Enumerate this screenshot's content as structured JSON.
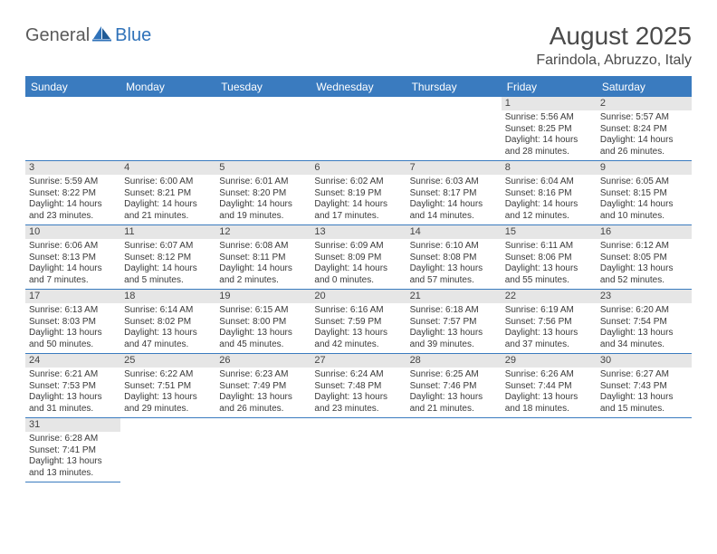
{
  "logo": {
    "part1": "General",
    "part2": "Blue"
  },
  "title": "August 2025",
  "location": "Farindola, Abruzzo, Italy",
  "colors": {
    "header_bg": "#3a7bbf",
    "header_text": "#ffffff",
    "daynum_bg": "#e6e6e6",
    "border": "#3a7bbf",
    "logo_gray": "#5a5a5a",
    "logo_blue": "#2f72b9"
  },
  "day_names": [
    "Sunday",
    "Monday",
    "Tuesday",
    "Wednesday",
    "Thursday",
    "Friday",
    "Saturday"
  ],
  "weeks": [
    [
      {
        "empty": true
      },
      {
        "empty": true
      },
      {
        "empty": true
      },
      {
        "empty": true
      },
      {
        "empty": true
      },
      {
        "num": "1",
        "sunrise": "Sunrise: 5:56 AM",
        "sunset": "Sunset: 8:25 PM",
        "daylight": "Daylight: 14 hours and 28 minutes."
      },
      {
        "num": "2",
        "sunrise": "Sunrise: 5:57 AM",
        "sunset": "Sunset: 8:24 PM",
        "daylight": "Daylight: 14 hours and 26 minutes."
      }
    ],
    [
      {
        "num": "3",
        "sunrise": "Sunrise: 5:59 AM",
        "sunset": "Sunset: 8:22 PM",
        "daylight": "Daylight: 14 hours and 23 minutes."
      },
      {
        "num": "4",
        "sunrise": "Sunrise: 6:00 AM",
        "sunset": "Sunset: 8:21 PM",
        "daylight": "Daylight: 14 hours and 21 minutes."
      },
      {
        "num": "5",
        "sunrise": "Sunrise: 6:01 AM",
        "sunset": "Sunset: 8:20 PM",
        "daylight": "Daylight: 14 hours and 19 minutes."
      },
      {
        "num": "6",
        "sunrise": "Sunrise: 6:02 AM",
        "sunset": "Sunset: 8:19 PM",
        "daylight": "Daylight: 14 hours and 17 minutes."
      },
      {
        "num": "7",
        "sunrise": "Sunrise: 6:03 AM",
        "sunset": "Sunset: 8:17 PM",
        "daylight": "Daylight: 14 hours and 14 minutes."
      },
      {
        "num": "8",
        "sunrise": "Sunrise: 6:04 AM",
        "sunset": "Sunset: 8:16 PM",
        "daylight": "Daylight: 14 hours and 12 minutes."
      },
      {
        "num": "9",
        "sunrise": "Sunrise: 6:05 AM",
        "sunset": "Sunset: 8:15 PM",
        "daylight": "Daylight: 14 hours and 10 minutes."
      }
    ],
    [
      {
        "num": "10",
        "sunrise": "Sunrise: 6:06 AM",
        "sunset": "Sunset: 8:13 PM",
        "daylight": "Daylight: 14 hours and 7 minutes."
      },
      {
        "num": "11",
        "sunrise": "Sunrise: 6:07 AM",
        "sunset": "Sunset: 8:12 PM",
        "daylight": "Daylight: 14 hours and 5 minutes."
      },
      {
        "num": "12",
        "sunrise": "Sunrise: 6:08 AM",
        "sunset": "Sunset: 8:11 PM",
        "daylight": "Daylight: 14 hours and 2 minutes."
      },
      {
        "num": "13",
        "sunrise": "Sunrise: 6:09 AM",
        "sunset": "Sunset: 8:09 PM",
        "daylight": "Daylight: 14 hours and 0 minutes."
      },
      {
        "num": "14",
        "sunrise": "Sunrise: 6:10 AM",
        "sunset": "Sunset: 8:08 PM",
        "daylight": "Daylight: 13 hours and 57 minutes."
      },
      {
        "num": "15",
        "sunrise": "Sunrise: 6:11 AM",
        "sunset": "Sunset: 8:06 PM",
        "daylight": "Daylight: 13 hours and 55 minutes."
      },
      {
        "num": "16",
        "sunrise": "Sunrise: 6:12 AM",
        "sunset": "Sunset: 8:05 PM",
        "daylight": "Daylight: 13 hours and 52 minutes."
      }
    ],
    [
      {
        "num": "17",
        "sunrise": "Sunrise: 6:13 AM",
        "sunset": "Sunset: 8:03 PM",
        "daylight": "Daylight: 13 hours and 50 minutes."
      },
      {
        "num": "18",
        "sunrise": "Sunrise: 6:14 AM",
        "sunset": "Sunset: 8:02 PM",
        "daylight": "Daylight: 13 hours and 47 minutes."
      },
      {
        "num": "19",
        "sunrise": "Sunrise: 6:15 AM",
        "sunset": "Sunset: 8:00 PM",
        "daylight": "Daylight: 13 hours and 45 minutes."
      },
      {
        "num": "20",
        "sunrise": "Sunrise: 6:16 AM",
        "sunset": "Sunset: 7:59 PM",
        "daylight": "Daylight: 13 hours and 42 minutes."
      },
      {
        "num": "21",
        "sunrise": "Sunrise: 6:18 AM",
        "sunset": "Sunset: 7:57 PM",
        "daylight": "Daylight: 13 hours and 39 minutes."
      },
      {
        "num": "22",
        "sunrise": "Sunrise: 6:19 AM",
        "sunset": "Sunset: 7:56 PM",
        "daylight": "Daylight: 13 hours and 37 minutes."
      },
      {
        "num": "23",
        "sunrise": "Sunrise: 6:20 AM",
        "sunset": "Sunset: 7:54 PM",
        "daylight": "Daylight: 13 hours and 34 minutes."
      }
    ],
    [
      {
        "num": "24",
        "sunrise": "Sunrise: 6:21 AM",
        "sunset": "Sunset: 7:53 PM",
        "daylight": "Daylight: 13 hours and 31 minutes."
      },
      {
        "num": "25",
        "sunrise": "Sunrise: 6:22 AM",
        "sunset": "Sunset: 7:51 PM",
        "daylight": "Daylight: 13 hours and 29 minutes."
      },
      {
        "num": "26",
        "sunrise": "Sunrise: 6:23 AM",
        "sunset": "Sunset: 7:49 PM",
        "daylight": "Daylight: 13 hours and 26 minutes."
      },
      {
        "num": "27",
        "sunrise": "Sunrise: 6:24 AM",
        "sunset": "Sunset: 7:48 PM",
        "daylight": "Daylight: 13 hours and 23 minutes."
      },
      {
        "num": "28",
        "sunrise": "Sunrise: 6:25 AM",
        "sunset": "Sunset: 7:46 PM",
        "daylight": "Daylight: 13 hours and 21 minutes."
      },
      {
        "num": "29",
        "sunrise": "Sunrise: 6:26 AM",
        "sunset": "Sunset: 7:44 PM",
        "daylight": "Daylight: 13 hours and 18 minutes."
      },
      {
        "num": "30",
        "sunrise": "Sunrise: 6:27 AM",
        "sunset": "Sunset: 7:43 PM",
        "daylight": "Daylight: 13 hours and 15 minutes."
      }
    ],
    [
      {
        "num": "31",
        "sunrise": "Sunrise: 6:28 AM",
        "sunset": "Sunset: 7:41 PM",
        "daylight": "Daylight: 13 hours and 13 minutes."
      },
      {
        "empty": true
      },
      {
        "empty": true
      },
      {
        "empty": true
      },
      {
        "empty": true
      },
      {
        "empty": true
      },
      {
        "empty": true
      }
    ]
  ]
}
